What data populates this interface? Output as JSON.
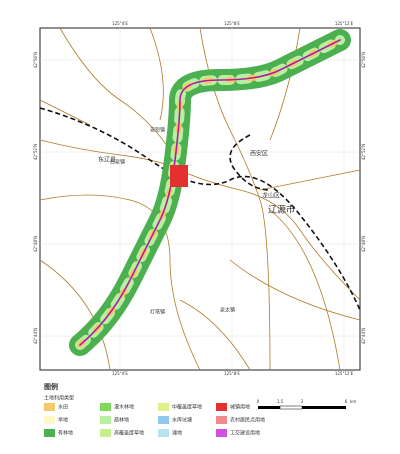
{
  "map": {
    "places": [
      "辽源市",
      "西安区",
      "龙山区",
      "东辽县",
      "白泉镇",
      "安恕镇",
      "泉太镇",
      "灯塔镇"
    ],
    "lon_labels": [
      "125°4'E",
      "125°8'E",
      "125°12'E"
    ],
    "lat_labels": [
      "42°56'N",
      "42°52'N",
      "42°48'N",
      "42°44'N"
    ]
  },
  "legend": {
    "title": "图例",
    "subtitle": "土地利用类型",
    "items": [
      {
        "label": "水田",
        "color": "#f5c96a"
      },
      {
        "label": "旱地",
        "color": "#fdf8c8"
      },
      {
        "label": "有林地",
        "color": "#4caf50"
      },
      {
        "label": "灌木林地",
        "color": "#7ed957"
      },
      {
        "label": "疏林地",
        "color": "#b8efa0"
      },
      {
        "label": "高覆盖度草地",
        "color": "#c6ee8c"
      },
      {
        "label": "中覆盖度草地",
        "color": "#e2f08a"
      },
      {
        "label": "水库坑塘",
        "color": "#8fc9ee"
      },
      {
        "label": "滩地",
        "color": "#b6e3f2"
      },
      {
        "label": "城镇用地",
        "color": "#e53030"
      },
      {
        "label": "农村居民点用地",
        "color": "#f08a8a"
      },
      {
        "label": "工交建设用地",
        "color": "#d050e0"
      }
    ]
  },
  "scale": {
    "labels": [
      "0",
      "1.5",
      "3",
      "6"
    ],
    "unit": "km"
  }
}
